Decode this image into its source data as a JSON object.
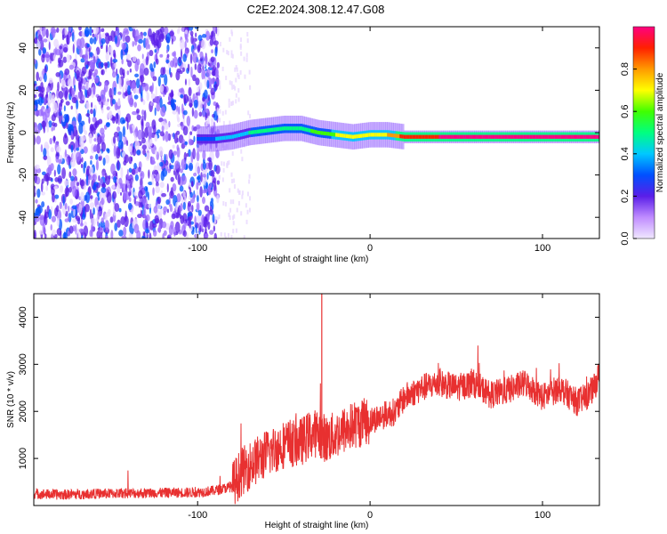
{
  "page": {
    "title": "C2E2.2024.308.12.47.G08"
  },
  "chart_data": [
    {
      "type": "heatmap",
      "title": "C2E2.2024.308.12.47.G08",
      "xlabel": "Height of straight line (km)",
      "ylabel": "Frequency (Hz)",
      "xlim": [
        -195,
        133
      ],
      "ylim": [
        -50,
        50
      ],
      "x_ticks": [
        -100,
        0,
        100
      ],
      "x_tick_labels": [
        "-100",
        "0",
        "100"
      ],
      "y_ticks": [
        -40,
        -20,
        0,
        20,
        40
      ],
      "y_tick_labels": [
        "-40",
        "-20",
        "0",
        "20",
        "40"
      ],
      "grid": false,
      "colorbar": {
        "label": "Normalized spectral amplitude",
        "range": [
          0,
          1
        ],
        "ticks": [
          0,
          0.2,
          0.4,
          0.6,
          0.8
        ],
        "tick_labels": [
          "0.0",
          "0.2",
          "0.4",
          "0.6",
          "0.8"
        ],
        "colormap": [
          "#e8d8ff",
          "#9b6cff",
          "#5a1ee8",
          "#0050ff",
          "#00c8ff",
          "#00ff80",
          "#40ff00",
          "#ffff00",
          "#ff9a00",
          "#ff2000",
          "#ff0080"
        ]
      },
      "signal_trace": {
        "x": [
          -100,
          -90,
          -80,
          -70,
          -60,
          -50,
          -40,
          -30,
          -20,
          -10,
          0,
          10,
          20,
          40,
          60,
          80,
          100,
          120,
          133
        ],
        "y": [
          -3,
          -3,
          -2,
          0,
          1,
          2,
          2,
          0,
          -1,
          -2,
          -1,
          -1,
          -2,
          -2,
          -2,
          -2,
          -2,
          -2,
          -2
        ],
        "amplitude": [
          0.3,
          0.35,
          0.4,
          0.45,
          0.5,
          0.55,
          0.5,
          0.6,
          0.65,
          0.65,
          0.7,
          0.75,
          0.9,
          0.95,
          0.95,
          0.95,
          0.95,
          0.95,
          0.95
        ]
      }
    },
    {
      "type": "line",
      "xlabel": "Height of straight line (km)",
      "ylabel": "SNR (10 * v/v)",
      "xlim": [
        -195,
        133
      ],
      "ylim": [
        0,
        4500
      ],
      "x_ticks": [
        -100,
        0,
        100
      ],
      "x_tick_labels": [
        "-100",
        "0",
        "100"
      ],
      "y_ticks": [
        1000,
        2000,
        3000,
        4000
      ],
      "y_tick_labels": [
        "1000",
        "2000",
        "3000",
        "4000"
      ],
      "grid": false,
      "color": "#e83030",
      "series": [
        {
          "x": [
            -195,
            -180,
            -160,
            -140,
            -120,
            -100,
            -90,
            -80,
            -75,
            -70,
            -60,
            -50,
            -40,
            -35,
            -30,
            -25,
            -20,
            -10,
            0,
            10,
            15,
            20,
            30,
            40,
            50,
            60,
            70,
            80,
            90,
            100,
            110,
            115,
            120,
            125,
            130,
            133
          ],
          "y": [
            250,
            230,
            250,
            260,
            270,
            280,
            320,
            400,
            700,
            850,
            1100,
            1300,
            1350,
            1500,
            1550,
            1400,
            1500,
            1700,
            1800,
            1950,
            2000,
            2300,
            2500,
            2600,
            2500,
            2600,
            2350,
            2450,
            2600,
            2300,
            2500,
            2350,
            2200,
            2300,
            2500,
            2800
          ]
        }
      ],
      "annotations": [
        {
          "x": -28,
          "y": 4500,
          "text": ""
        }
      ]
    }
  ]
}
